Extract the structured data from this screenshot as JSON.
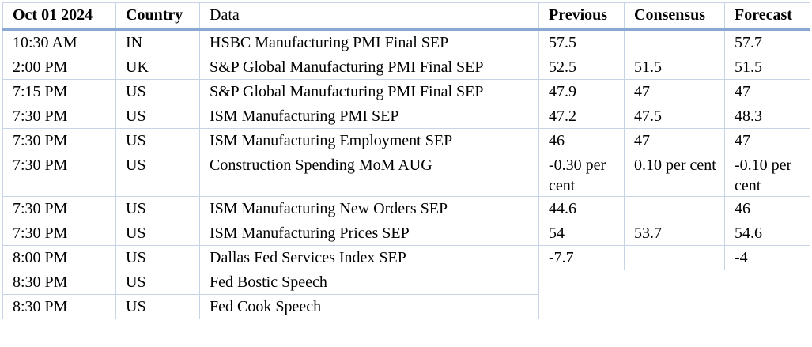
{
  "table": {
    "headers": {
      "date": "Oct 01 2024",
      "country": "Country",
      "data": "Data",
      "previous": "Previous",
      "consensus": "Consensus",
      "forecast": "Forecast"
    },
    "rows": [
      {
        "time": "10:30 AM",
        "country": "IN",
        "data": "HSBC Manufacturing PMI Final SEP",
        "previous": "57.5",
        "consensus": "",
        "forecast": "57.7"
      },
      {
        "time": "2:00 PM",
        "country": "UK",
        "data": "S&P Global Manufacturing PMI Final SEP",
        "previous": "52.5",
        "consensus": "51.5",
        "forecast": "51.5"
      },
      {
        "time": "7:15 PM",
        "country": "US",
        "data": "S&P Global Manufacturing PMI Final SEP",
        "previous": "47.9",
        "consensus": "47",
        "forecast": "47"
      },
      {
        "time": "7:30 PM",
        "country": "US",
        "data": "ISM Manufacturing PMI SEP",
        "previous": "47.2",
        "consensus": "47.5",
        "forecast": "48.3"
      },
      {
        "time": "7:30 PM",
        "country": "US",
        "data": "ISM Manufacturing Employment SEP",
        "previous": "46",
        "consensus": "47",
        "forecast": "47"
      },
      {
        "time": "7:30 PM",
        "country": "US",
        "data": "Construction Spending MoM AUG",
        "previous": "-0.30 per cent",
        "consensus": "0.10 per cent",
        "forecast": "-0.10 per cent"
      },
      {
        "time": "7:30 PM",
        "country": "US",
        "data": "ISM Manufacturing New Orders SEP",
        "previous": "44.6",
        "consensus": "",
        "forecast": "46"
      },
      {
        "time": "7:30 PM",
        "country": "US",
        "data": "ISM Manufacturing Prices SEP",
        "previous": "54",
        "consensus": "53.7",
        "forecast": "54.6"
      },
      {
        "time": "8:00 PM",
        "country": "US",
        "data": "Dallas Fed Services Index SEP",
        "previous": "-7.7",
        "consensus": "",
        "forecast": "-4"
      },
      {
        "time": "8:30 PM",
        "country": "US",
        "data": "Fed Bostic Speech"
      },
      {
        "time": "8:30 PM",
        "country": "US",
        "data": "Fed Cook Speech"
      }
    ]
  }
}
